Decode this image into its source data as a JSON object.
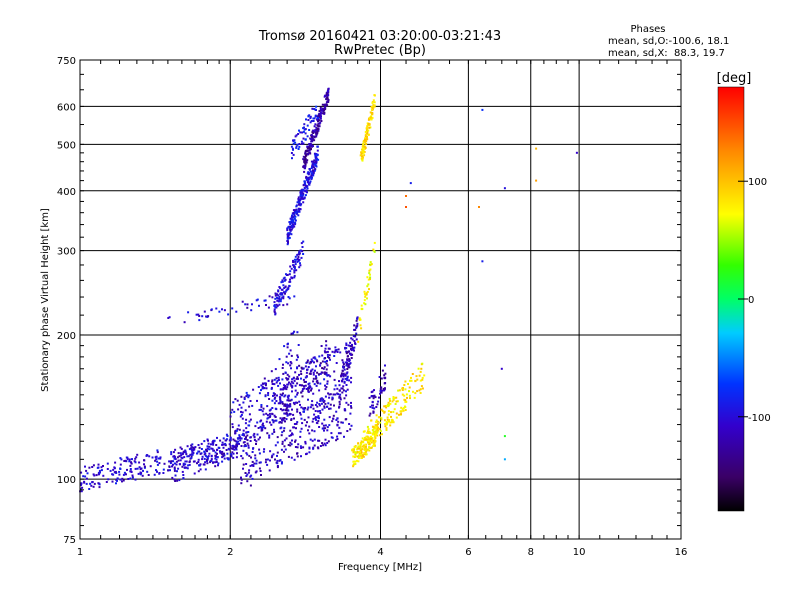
{
  "chart_data": {
    "type": "scatter",
    "title": "Tromsø 20160421 03:20:00-03:21:43",
    "subtitle": "RwPretec (Bp)",
    "xlabel": "Frequency [MHz]",
    "ylabel": "Stationary phase Virtual Height [km]",
    "x_scale": "log",
    "y_scale": "log",
    "xlim": [
      1,
      16
    ],
    "ylim": [
      75,
      750
    ],
    "x_ticks": [
      1,
      2,
      4,
      6,
      8,
      10,
      16
    ],
    "y_ticks": [
      75,
      100,
      200,
      300,
      400,
      500,
      600,
      750
    ],
    "x_tick_labels": [
      "1",
      "2",
      "4",
      "6",
      "8",
      "10",
      "16"
    ],
    "y_tick_labels": [
      "75",
      "100",
      "200",
      "300",
      "400",
      "500",
      "600",
      "750"
    ],
    "grid": true,
    "stats": {
      "heading": "Phases",
      "line_o": "mean, sd,O:-100.6, 18.1",
      "line_x": "mean, sd,X:  88.3, 19.7"
    },
    "colorbar": {
      "label": "[deg]",
      "min": -180,
      "max": 180,
      "ticks": [
        100,
        0,
        -100
      ],
      "tick_labels": [
        "100",
        "0",
        "-100"
      ]
    },
    "series": [
      {
        "name": "O",
        "phase_mean": -100.6,
        "clusters": [
          {
            "x": [
              1.0,
              2.1
            ],
            "y": [
              100,
              118
            ],
            "phase": -105,
            "n": 300,
            "dy": 0.06
          },
          {
            "x": [
              1.5,
              2.2
            ],
            "y": [
              104,
              122
            ],
            "phase": -110,
            "n": 150,
            "dy": 0.07
          },
          {
            "x": [
              2.1,
              3.5
            ],
            "y": [
              110,
              140
            ],
            "phase": -112,
            "n": 320,
            "dy": 0.12
          },
          {
            "x": [
              2.0,
              3.5
            ],
            "y": [
              130,
              175
            ],
            "phase": -105,
            "n": 260,
            "dy": 0.12
          },
          {
            "x": [
              2.5,
              3.2
            ],
            "y": [
              140,
              185
            ],
            "phase": -120,
            "n": 120,
            "dy": 0.08
          },
          {
            "x": [
              3.3,
              3.6
            ],
            "y": [
              150,
              210
            ],
            "phase": -118,
            "n": 90,
            "dy": 0.06
          },
          {
            "x": [
              2.3,
              2.75
            ],
            "y": [
              140,
              190
            ],
            "phase": -108,
            "n": 80,
            "dy": 0.12
          },
          {
            "x": [
              1.5,
              2.7
            ],
            "y": [
              215,
              240
            ],
            "phase": -105,
            "n": 45,
            "dy": 0.03
          },
          {
            "x": [
              2.45,
              2.8
            ],
            "y": [
              230,
              300
            ],
            "phase": -100,
            "n": 120,
            "dy": 0.05
          },
          {
            "x": [
              2.6,
              3.0
            ],
            "y": [
              320,
              480
            ],
            "phase": -100,
            "n": 240,
            "dy": 0.045
          },
          {
            "x": [
              2.8,
              3.15
            ],
            "y": [
              450,
              640
            ],
            "phase": -125,
            "n": 200,
            "dy": 0.04
          },
          {
            "x": [
              2.65,
              3.0
            ],
            "y": [
              480,
              590
            ],
            "phase": -95,
            "n": 60,
            "dy": 0.05
          },
          {
            "x": [
              3.8,
              4.1
            ],
            "y": [
              140,
              165
            ],
            "phase": -115,
            "n": 50,
            "dy": 0.06
          }
        ]
      },
      {
        "name": "X",
        "phase_mean": 88.3,
        "clusters": [
          {
            "x": [
              3.5,
              3.95
            ],
            "y": [
              110,
              125
            ],
            "phase": 90,
            "n": 140,
            "dy": 0.05
          },
          {
            "x": [
              3.7,
              4.9
            ],
            "y": [
              120,
              165
            ],
            "phase": 90,
            "n": 180,
            "dy": 0.07
          },
          {
            "x": [
              3.65,
              3.9
            ],
            "y": [
              460,
              620
            ],
            "phase": 95,
            "n": 110,
            "dy": 0.04
          },
          {
            "x": [
              3.6,
              3.9
            ],
            "y": [
              200,
              300
            ],
            "phase": 80,
            "n": 40,
            "dy": 0.05
          }
        ]
      }
    ],
    "isolated_points": [
      {
        "x": 6.4,
        "y": 590,
        "phase": -80
      },
      {
        "x": 7.1,
        "y": 405,
        "phase": -100
      },
      {
        "x": 9.9,
        "y": 480,
        "phase": -110
      },
      {
        "x": 8.2,
        "y": 490,
        "phase": 110
      },
      {
        "x": 8.2,
        "y": 420,
        "phase": 120
      },
      {
        "x": 6.3,
        "y": 370,
        "phase": 130
      },
      {
        "x": 6.4,
        "y": 285,
        "phase": -90
      },
      {
        "x": 7.0,
        "y": 170,
        "phase": -110
      },
      {
        "x": 7.1,
        "y": 110,
        "phase": -40
      },
      {
        "x": 7.1,
        "y": 123,
        "phase": 20
      },
      {
        "x": 4.6,
        "y": 415,
        "phase": -90
      },
      {
        "x": 4.5,
        "y": 390,
        "phase": 140
      },
      {
        "x": 4.5,
        "y": 370,
        "phase": 150
      },
      {
        "x": 2.2,
        "y": 97,
        "phase": -130
      }
    ]
  }
}
